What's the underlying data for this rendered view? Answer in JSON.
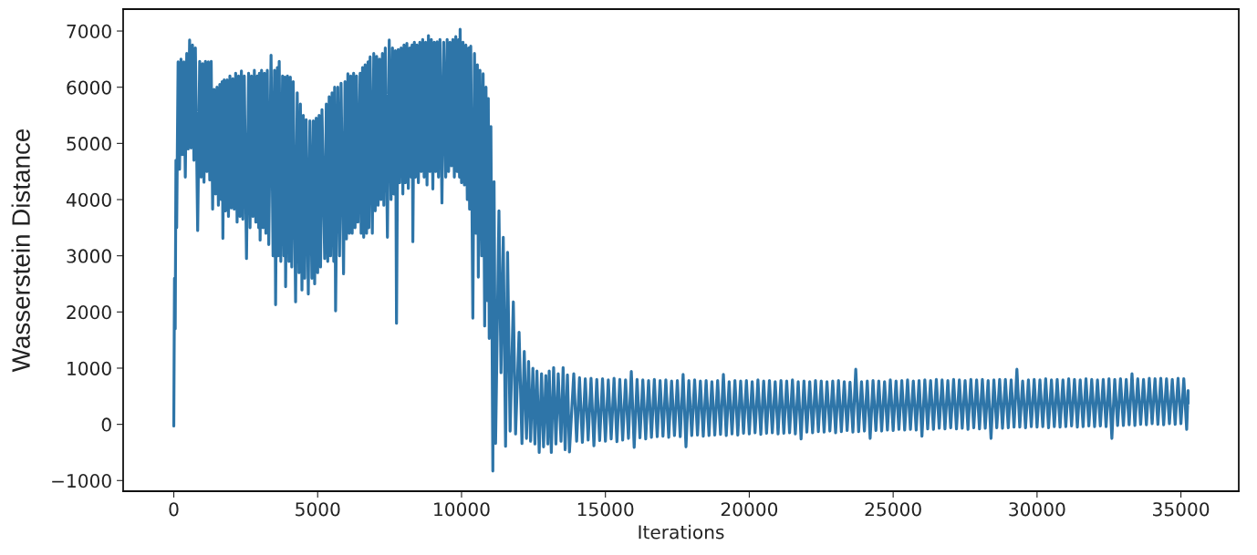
{
  "chart_data": {
    "type": "line",
    "xlabel": "Iterations",
    "ylabel": "Wasserstein Distance",
    "x": [
      0,
      25,
      50,
      75,
      100,
      150,
      200,
      250,
      300,
      350,
      400,
      450,
      500,
      550,
      600,
      650,
      700,
      750,
      830,
      900,
      950,
      1000,
      1050,
      1100,
      1150,
      1200,
      1250,
      1300,
      1350,
      1400,
      1450,
      1500,
      1550,
      1600,
      1650,
      1680,
      1706,
      1750,
      1800,
      1850,
      1900,
      1950,
      2000,
      2050,
      2100,
      2150,
      2200,
      2250,
      2300,
      2350,
      2400,
      2450,
      2527,
      2600,
      2650,
      2700,
      2750,
      2800,
      2850,
      2900,
      2950,
      2975,
      3000,
      3050,
      3100,
      3150,
      3200,
      3250,
      3300,
      3380,
      3450,
      3500,
      3538,
      3600,
      3620,
      3664,
      3720,
      3780,
      3830,
      3860,
      3886,
      3950,
      4000,
      4050,
      4100,
      4150,
      4233,
      4290,
      4350,
      4400,
      4454,
      4500,
      4550,
      4600,
      4675,
      4730,
      4800,
      4850,
      4896,
      4950,
      5000,
      5050,
      5100,
      5150,
      5244,
      5300,
      5350,
      5400,
      5450,
      5500,
      5560,
      5590,
      5623,
      5700,
      5760,
      5813,
      5900,
      5950,
      6000,
      6050,
      6100,
      6150,
      6200,
      6250,
      6300,
      6350,
      6400,
      6476,
      6510,
      6560,
      6600,
      6650,
      6700,
      6750,
      6780,
      6823,
      6900,
      6950,
      7000,
      7050,
      7100,
      7150,
      7200,
      7250,
      7300,
      7350,
      7424,
      7487,
      7550,
      7600,
      7650,
      7700,
      7740,
      7800,
      7850,
      7900,
      7961,
      8000,
      8050,
      8100,
      8150,
      8200,
      8250,
      8280,
      8308,
      8360,
      8400,
      8450,
      8500,
      8550,
      8600,
      8650,
      8700,
      8750,
      8800,
      8850,
      8900,
      8950,
      9003,
      9050,
      9100,
      9150,
      9200,
      9250,
      9319,
      9380,
      9450,
      9500,
      9550,
      9600,
      9650,
      9700,
      9750,
      9800,
      9850,
      9900,
      9930,
      9951,
      10000,
      10050,
      10100,
      10150,
      10200,
      10250,
      10280,
      10320,
      10393,
      10450,
      10500,
      10550,
      10583,
      10640,
      10700,
      10750,
      10804,
      10850,
      10900,
      10930,
      10962,
      11020,
      11088,
      11130,
      11183,
      11300,
      11372,
      11450,
      11530,
      11600,
      11688,
      11800,
      11878,
      12000,
      12100,
      12180,
      12257,
      12330,
      12400,
      12480,
      12550,
      12620,
      12699,
      12780,
      12850,
      12930,
      13000,
      13047,
      13120,
      13200,
      13280,
      13360,
      13457,
      13530,
      13600,
      13680,
      13750,
      13900,
      14000,
      14100,
      14200,
      14300,
      14400,
      14500,
      14600,
      14700,
      14800,
      14900,
      15000,
      15100,
      15200,
      15300,
      15400,
      15500,
      15600,
      15700,
      15800,
      15900,
      16000,
      16100,
      16200,
      16300,
      16400,
      16500,
      16600,
      16700,
      16800,
      16900,
      17000,
      17100,
      17200,
      17300,
      17400,
      17500,
      17600,
      17700,
      17800,
      17900,
      18000,
      18100,
      18200,
      18300,
      18400,
      18500,
      18600,
      18700,
      18800,
      18900,
      19000,
      19100,
      19200,
      19300,
      19400,
      19500,
      19600,
      19700,
      19800,
      19900,
      20000,
      20100,
      20200,
      20300,
      20400,
      20500,
      20600,
      20700,
      20800,
      20900,
      21000,
      21100,
      21200,
      21300,
      21400,
      21500,
      21600,
      21700,
      21800,
      21900,
      22000,
      22100,
      22200,
      22300,
      22400,
      22500,
      22600,
      22700,
      22800,
      22900,
      23000,
      23100,
      23200,
      23300,
      23400,
      23500,
      23600,
      23700,
      23800,
      23900,
      24000,
      24100,
      24200,
      24300,
      24400,
      24500,
      24600,
      24700,
      24800,
      24900,
      25000,
      25100,
      25200,
      25300,
      25400,
      25500,
      25600,
      25700,
      25800,
      25900,
      26000,
      26100,
      26200,
      26300,
      26400,
      26500,
      26600,
      26700,
      26800,
      26900,
      27000,
      27100,
      27200,
      27300,
      27400,
      27500,
      27600,
      27700,
      27800,
      27900,
      28000,
      28100,
      28200,
      28300,
      28400,
      28500,
      28600,
      28700,
      28800,
      28900,
      29000,
      29100,
      29200,
      29300,
      29400,
      29500,
      29600,
      29700,
      29800,
      29900,
      30000,
      30100,
      30200,
      30300,
      30400,
      30500,
      30600,
      30700,
      30800,
      30900,
      31000,
      31100,
      31200,
      31300,
      31400,
      31500,
      31600,
      31700,
      31800,
      31900,
      32000,
      32100,
      32200,
      32300,
      32400,
      32500,
      32600,
      32700,
      32800,
      32900,
      33000,
      33100,
      33200,
      33300,
      33400,
      33500,
      33600,
      33700,
      33800,
      33900,
      34000,
      34100,
      34200,
      34300,
      34400,
      34500,
      34600,
      34700,
      34800,
      34900,
      35000,
      35100,
      35200,
      35250,
      35250
    ],
    "series": [
      {
        "color": "#2e75a8",
        "values": [
          -30,
          2600,
          1700,
          4700,
          3500,
          6450,
          4540,
          6500,
          4800,
          6450,
          4400,
          6600,
          4900,
          6840,
          4920,
          6750,
          4700,
          6700,
          3450,
          6460,
          4400,
          6420,
          4310,
          6460,
          4500,
          6450,
          4350,
          6460,
          3830,
          5960,
          4100,
          6000,
          3900,
          6050,
          4000,
          6100,
          3310,
          6130,
          3800,
          6130,
          3700,
          6200,
          3850,
          6150,
          3830,
          6250,
          3600,
          6200,
          3700,
          6290,
          3650,
          6200,
          2950,
          6250,
          3500,
          6200,
          3700,
          6300,
          3600,
          6200,
          3500,
          6250,
          3280,
          6300,
          3500,
          6250,
          3400,
          6300,
          3200,
          6570,
          3000,
          6300,
          2130,
          6350,
          3000,
          6460,
          2900,
          6200,
          3000,
          6180,
          2450,
          6200,
          2900,
          6180,
          2800,
          6100,
          2180,
          5900,
          2700,
          5700,
          2390,
          5500,
          2600,
          5420,
          2320,
          5400,
          2600,
          5400,
          2500,
          5450,
          2700,
          5500,
          2800,
          5600,
          2950,
          5700,
          2900,
          5830,
          3000,
          5900,
          2900,
          6000,
          2020,
          6000,
          3000,
          6070,
          2680,
          6100,
          3300,
          6240,
          3400,
          6200,
          3400,
          6250,
          3500,
          6200,
          3600,
          6250,
          3400,
          6350,
          3330,
          6400,
          3400,
          6450,
          3500,
          6540,
          3400,
          6600,
          3800,
          6550,
          3900,
          6500,
          4000,
          6600,
          3900,
          6700,
          3330,
          6840,
          4000,
          6700,
          4100,
          6650,
          1800,
          6670,
          4300,
          6700,
          4100,
          6750,
          4300,
          6780,
          4200,
          6700,
          4400,
          6750,
          3250,
          6800,
          4400,
          6750,
          4300,
          6800,
          4500,
          6850,
          4400,
          6800,
          4260,
          6920,
          4500,
          6850,
          4190,
          6800,
          4500,
          6810,
          4400,
          6850,
          3940,
          6800,
          4400,
          6850,
          4500,
          6800,
          4600,
          6850,
          4400,
          6900,
          4500,
          6850,
          4400,
          7030,
          4300,
          6800,
          4260,
          6750,
          4000,
          6700,
          3830,
          6730,
          1890,
          6600,
          3400,
          6400,
          2620,
          6300,
          3000,
          6240,
          1750,
          6000,
          2200,
          5800,
          1530,
          5300,
          -830,
          4320,
          -340,
          3800,
          920,
          3330,
          -390,
          3060,
          -120,
          2180,
          -170,
          1640,
          -340,
          1300,
          -250,
          1120,
          -300,
          1000,
          -350,
          950,
          -500,
          900,
          -400,
          870,
          -350,
          950,
          -500,
          1010,
          -350,
          900,
          -300,
          1010,
          -450,
          880,
          -490,
          900,
          -300,
          830,
          -320,
          810,
          -280,
          820,
          -380,
          800,
          -290,
          810,
          -300,
          790,
          -260,
          820,
          -310,
          800,
          -280,
          790,
          -250,
          940,
          -410,
          800,
          -240,
          790,
          -260,
          780,
          -230,
          800,
          -220,
          780,
          -210,
          790,
          -230,
          770,
          -200,
          780,
          -220,
          890,
          -400,
          780,
          -200,
          790,
          -190,
          770,
          -210,
          780,
          -200,
          760,
          -190,
          780,
          -180,
          890,
          -200,
          760,
          -170,
          780,
          -190,
          770,
          -160,
          780,
          -170,
          760,
          -150,
          790,
          -180,
          770,
          -160,
          780,
          -150,
          760,
          -170,
          780,
          -160,
          770,
          -150,
          790,
          -170,
          760,
          -260,
          770,
          -140,
          760,
          -150,
          780,
          -130,
          770,
          -140,
          760,
          -120,
          770,
          -150,
          780,
          -130,
          760,
          -110,
          750,
          -140,
          980,
          -130,
          760,
          -120,
          770,
          -250,
          780,
          -110,
          770,
          -120,
          760,
          -100,
          790,
          -110,
          770,
          -90,
          780,
          -100,
          790,
          -90,
          770,
          -100,
          780,
          -210,
          790,
          -80,
          780,
          -90,
          800,
          -70,
          790,
          -80,
          780,
          -60,
          800,
          -80,
          790,
          -70,
          780,
          -90,
          800,
          -60,
          790,
          -80,
          800,
          -70,
          780,
          -250,
          790,
          -60,
          800,
          -70,
          800,
          -60,
          790,
          -50,
          980,
          -50,
          770,
          -60,
          790,
          -40,
          800,
          -50,
          790,
          -40,
          810,
          -60,
          790,
          -40,
          800,
          -50,
          790,
          -40,
          810,
          -30,
          800,
          -50,
          790,
          -40,
          810,
          -30,
          800,
          -40,
          790,
          -30,
          800,
          -40,
          810,
          -250,
          800,
          -20,
          810,
          -20,
          800,
          -10,
          900,
          -20,
          810,
          0,
          800,
          -10,
          820,
          10,
          810,
          0,
          820,
          -10,
          810,
          10,
          800,
          0,
          820,
          10,
          810,
          -90,
          600,
          370
        ]
      }
    ],
    "xlim": [
      -1760,
      37010
    ],
    "ylim": [
      -1190,
      7390
    ],
    "xticks": [
      0,
      5000,
      10000,
      15000,
      20000,
      25000,
      30000,
      35000
    ],
    "yticks": [
      {
        "value": -1000,
        "label": "−1000"
      },
      0,
      1000,
      2000,
      3000,
      4000,
      5000,
      6000,
      7000
    ],
    "line_style": "solid"
  }
}
